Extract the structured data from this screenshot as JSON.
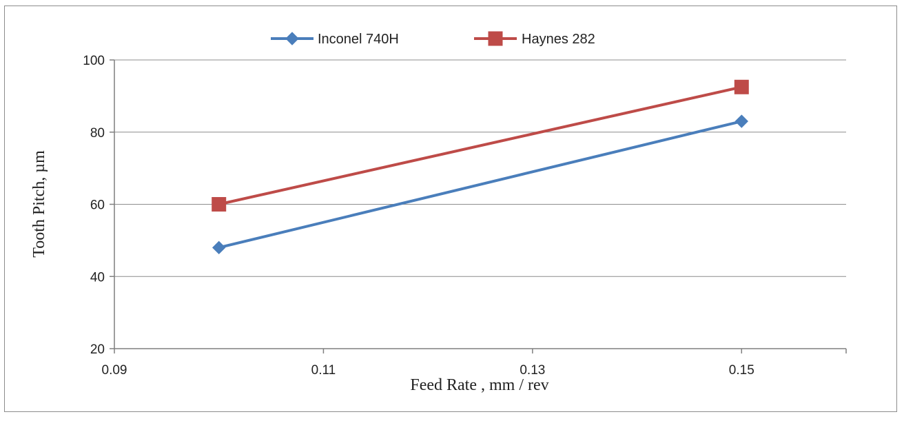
{
  "chart_data": {
    "type": "line",
    "title": "",
    "xlabel": "Feed Rate , mm / rev",
    "ylabel": "Tooth Pitch, µm",
    "xlim": [
      0.09,
      0.16
    ],
    "ylim": [
      20,
      100
    ],
    "xticks": [
      0.09,
      0.11,
      0.13,
      0.15
    ],
    "xtick_labels": [
      "0.09",
      "0.11",
      "0.13",
      "0.15"
    ],
    "yticks": [
      20,
      40,
      60,
      80,
      100
    ],
    "ytick_labels": [
      "20",
      "40",
      "60",
      "80",
      "100"
    ],
    "grid": "horizontal",
    "legend_position": "top-center",
    "series": [
      {
        "name": "Inconel 740H",
        "color": "#4a7ebb",
        "marker": "diamond",
        "x": [
          0.1,
          0.15
        ],
        "y": [
          48,
          83
        ]
      },
      {
        "name": "Haynes 282",
        "color": "#be4b48",
        "marker": "square",
        "x": [
          0.1,
          0.15
        ],
        "y": [
          60,
          92.5
        ]
      }
    ]
  }
}
